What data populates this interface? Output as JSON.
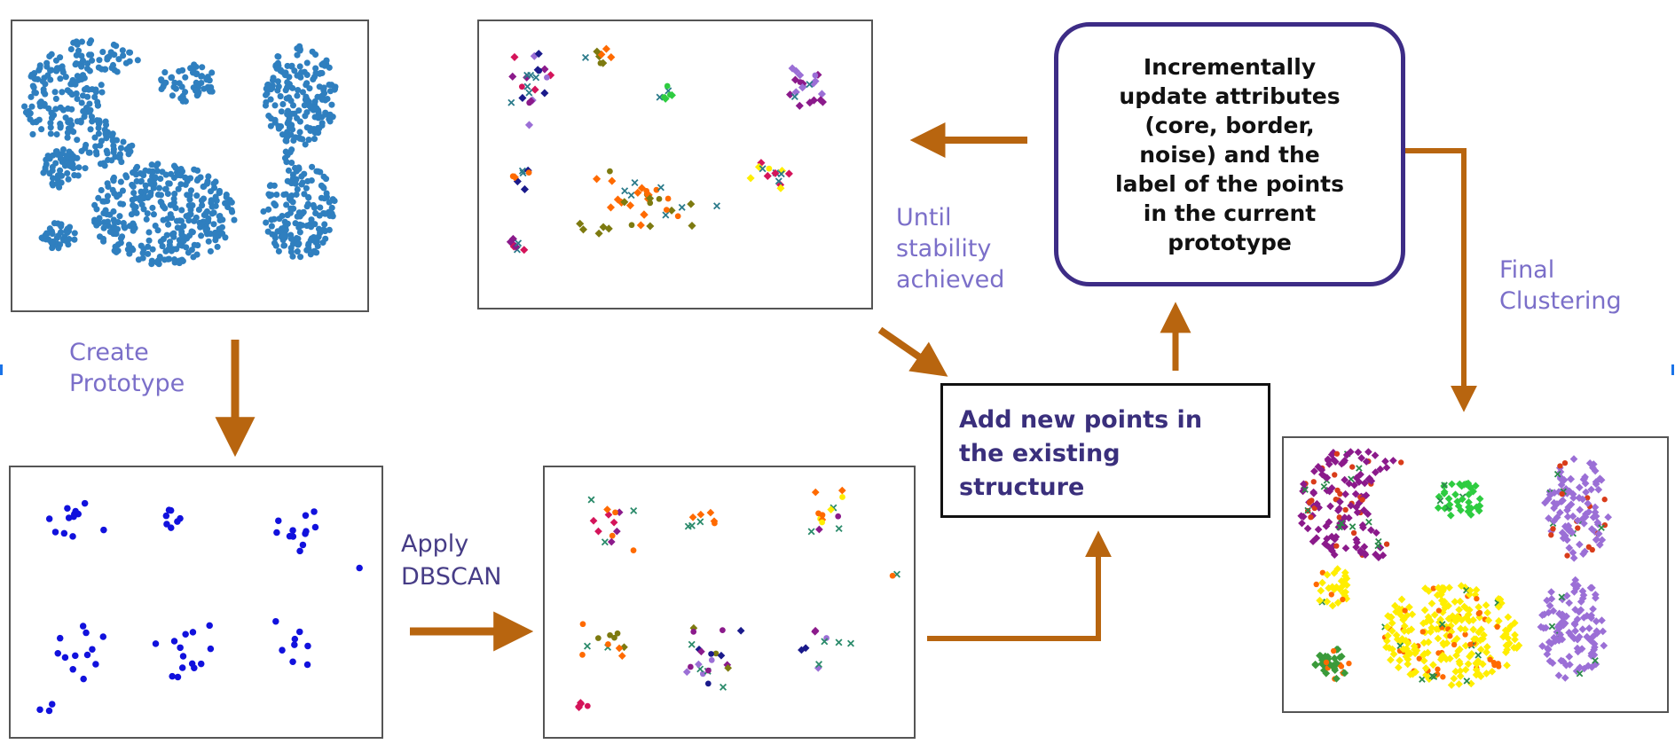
{
  "labels": {
    "create_prototype": "Create\nPrototype",
    "apply_dbscan": "Apply\nDBSCAN",
    "until_stability": "Until\nstability\nachieved",
    "final_clustering": "Final\nClustering"
  },
  "boxes": {
    "incremental_update": "Incrementally\nupdate attributes\n(core, border,\nnoise) and the\nlabel of the points\nin the current\nprototype",
    "add_new_points": "Add new points in\nthe existing\nstructure"
  },
  "colors": {
    "arrow": "#b8650f",
    "original_points": "#2f7fbf",
    "prototype_points": "#1111dd",
    "box_border": "#3d2c86",
    "label_text": "#7b6fc9",
    "cluster_palette": [
      "#8b1a8b",
      "#2ecc40",
      "#9b6fd6",
      "#ffee00",
      "#ff6a00",
      "#d4145a",
      "#7d7a10",
      "#1a1a8b",
      "#d93c1a",
      "#3a9a3a"
    ]
  }
}
